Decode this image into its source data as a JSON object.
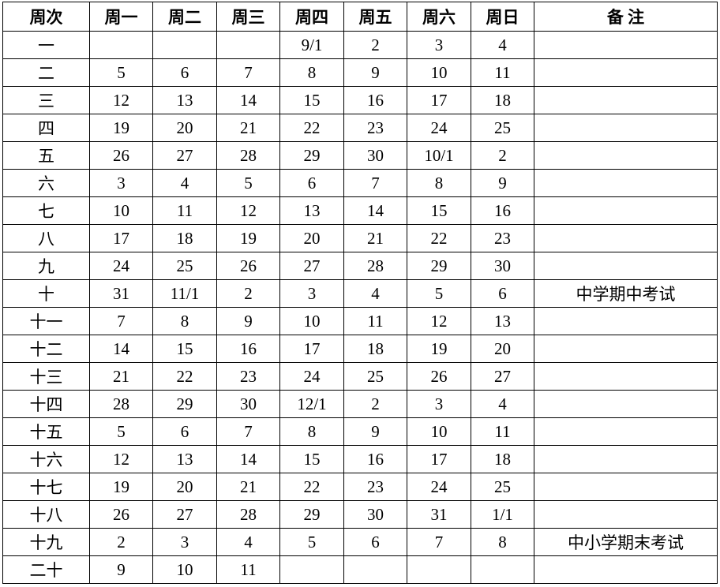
{
  "table": {
    "header": [
      "周次",
      "周一",
      "周二",
      "周三",
      "周四",
      "周五",
      "周六",
      "周日",
      "备 注"
    ],
    "rows": [
      {
        "week": "一",
        "days": [
          null,
          null,
          null,
          "9/1",
          2,
          3,
          4
        ]
      },
      {
        "week": "二",
        "days": [
          5,
          6,
          7,
          8,
          9,
          10,
          11
        ]
      },
      {
        "week": "三",
        "days": [
          12,
          13,
          14,
          15,
          16,
          17,
          18
        ]
      },
      {
        "week": "四",
        "days": [
          19,
          20,
          21,
          22,
          23,
          24,
          25
        ]
      },
      {
        "week": "五",
        "days": [
          26,
          27,
          28,
          29,
          30,
          "10/1",
          2
        ]
      },
      {
        "week": "六",
        "days": [
          3,
          4,
          5,
          6,
          7,
          8,
          9
        ]
      },
      {
        "week": "七",
        "days": [
          10,
          11,
          12,
          13,
          14,
          15,
          16
        ]
      },
      {
        "week": "八",
        "days": [
          17,
          18,
          19,
          20,
          21,
          22,
          23
        ]
      },
      {
        "week": "九",
        "days": [
          24,
          25,
          26,
          27,
          28,
          29,
          30
        ]
      },
      {
        "week": "十",
        "days": [
          31,
          "11/1",
          2,
          3,
          4,
          5,
          6
        ],
        "note": "中学期中考试"
      },
      {
        "week": "十一",
        "days": [
          7,
          8,
          9,
          10,
          11,
          12,
          13
        ]
      },
      {
        "week": "十二",
        "days": [
          14,
          15,
          16,
          17,
          18,
          19,
          20
        ]
      },
      {
        "week": "十三",
        "days": [
          21,
          22,
          23,
          24,
          25,
          26,
          27
        ]
      },
      {
        "week": "十四",
        "days": [
          28,
          29,
          30,
          "12/1",
          2,
          3,
          4
        ]
      },
      {
        "week": "十五",
        "days": [
          5,
          6,
          7,
          8,
          9,
          10,
          11
        ]
      },
      {
        "week": "十六",
        "days": [
          12,
          13,
          14,
          15,
          16,
          17,
          18
        ]
      },
      {
        "week": "十七",
        "days": [
          19,
          20,
          21,
          22,
          23,
          24,
          25
        ]
      },
      {
        "week": "十八",
        "days": [
          26,
          27,
          28,
          29,
          30,
          31,
          "1/1"
        ]
      },
      {
        "week": "十九",
        "days": [
          2,
          3,
          4,
          5,
          6,
          7,
          8
        ],
        "note": "中小学期末考试"
      },
      {
        "week": "二十",
        "days": [
          9,
          10,
          11,
          null,
          null,
          null,
          null
        ]
      }
    ]
  }
}
